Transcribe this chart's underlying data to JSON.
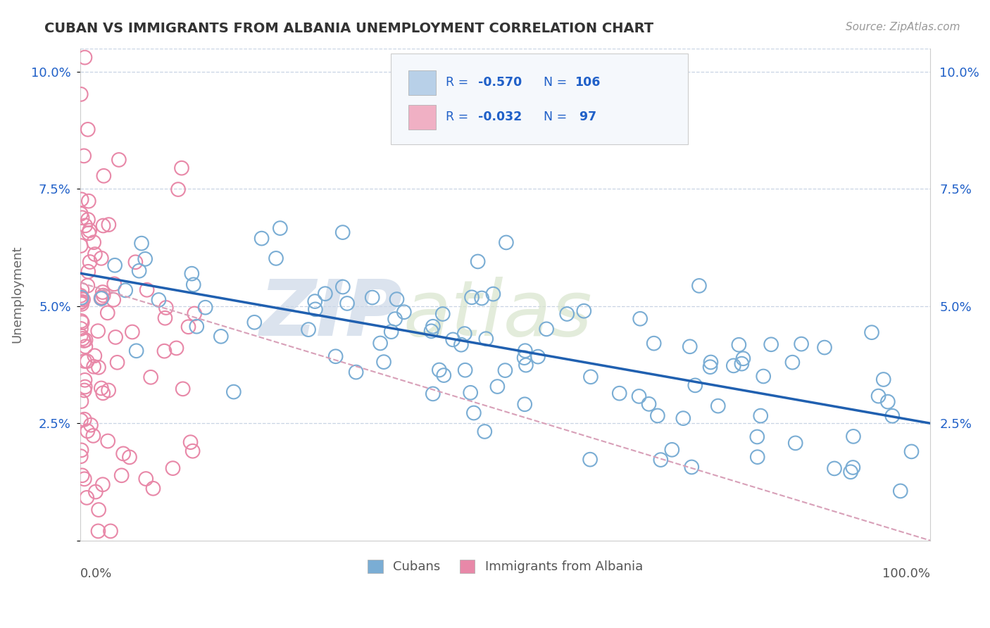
{
  "title": "CUBAN VS IMMIGRANTS FROM ALBANIA UNEMPLOYMENT CORRELATION CHART",
  "source": "Source: ZipAtlas.com",
  "ylabel": "Unemployment",
  "yticks": [
    0.0,
    0.025,
    0.05,
    0.075,
    0.1
  ],
  "ytick_labels": [
    "",
    "2.5%",
    "5.0%",
    "7.5%",
    "10.0%"
  ],
  "legend_r_cuban": "R = -0.570",
  "legend_n_cuban": "N = 106",
  "legend_r_albania": "R = -0.032",
  "legend_n_albania": "N =  97",
  "cuban_edge_color": "#7aadd4",
  "cuban_line_color": "#2060b0",
  "albania_edge_color": "#e888a8",
  "albania_line_color": "#ccbbcc",
  "watermark_zip": "ZIP",
  "watermark_atlas": "atlas",
  "watermark_color": "#dce8f0",
  "xlim": [
    0.0,
    1.0
  ],
  "ylim": [
    0.0,
    0.105
  ],
  "background_color": "#ffffff",
  "grid_color": "#c8d4e4",
  "legend_box_color": "#f0f4f8",
  "text_blue": "#2060c8",
  "text_dark": "#444444"
}
